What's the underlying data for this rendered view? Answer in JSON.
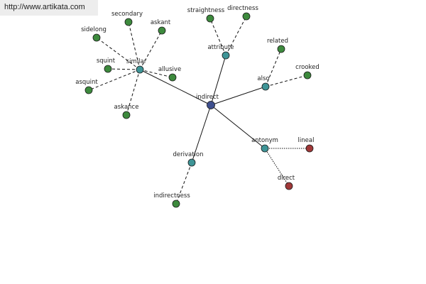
{
  "watermark": "http://www.artikata.com",
  "colors": {
    "center": "#3e4f8e",
    "relation": "#3e9496",
    "term": "#3d8a3d",
    "antonym_term": "#a03838",
    "edge": "#111111"
  },
  "nodes": [
    {
      "id": "indirect",
      "label": "indirect",
      "kind": "center"
    },
    {
      "id": "similar",
      "label": "similar",
      "kind": "relation"
    },
    {
      "id": "attribute",
      "label": "attribute",
      "kind": "relation"
    },
    {
      "id": "also",
      "label": "also",
      "kind": "relation"
    },
    {
      "id": "antonym",
      "label": "antonym",
      "kind": "relation"
    },
    {
      "id": "derivation",
      "label": "derivation",
      "kind": "relation"
    },
    {
      "id": "secondary",
      "label": "secondary",
      "kind": "term"
    },
    {
      "id": "askant",
      "label": "askant",
      "kind": "term"
    },
    {
      "id": "sidelong",
      "label": "sidelong",
      "kind": "term"
    },
    {
      "id": "squint",
      "label": "squint",
      "kind": "term"
    },
    {
      "id": "allusive",
      "label": "allusive",
      "kind": "term"
    },
    {
      "id": "asquint",
      "label": "asquint",
      "kind": "term"
    },
    {
      "id": "askance",
      "label": "askance",
      "kind": "term"
    },
    {
      "id": "straightness",
      "label": "straightness",
      "kind": "term"
    },
    {
      "id": "directness",
      "label": "directness",
      "kind": "term"
    },
    {
      "id": "related",
      "label": "related",
      "kind": "term"
    },
    {
      "id": "crooked",
      "label": "crooked",
      "kind": "term"
    },
    {
      "id": "lineal",
      "label": "lineal",
      "kind": "antonym_term"
    },
    {
      "id": "direct",
      "label": "direct",
      "kind": "antonym_term"
    },
    {
      "id": "indirectness",
      "label": "indirectness",
      "kind": "term"
    }
  ],
  "edges": [
    {
      "from": "indirect",
      "to": "similar",
      "style": "solid"
    },
    {
      "from": "indirect",
      "to": "attribute",
      "style": "solid"
    },
    {
      "from": "indirect",
      "to": "also",
      "style": "solid"
    },
    {
      "from": "indirect",
      "to": "antonym",
      "style": "solid"
    },
    {
      "from": "indirect",
      "to": "derivation",
      "style": "solid"
    },
    {
      "from": "similar",
      "to": "secondary",
      "style": "dashed"
    },
    {
      "from": "similar",
      "to": "askant",
      "style": "dashed"
    },
    {
      "from": "similar",
      "to": "sidelong",
      "style": "dashed"
    },
    {
      "from": "similar",
      "to": "squint",
      "style": "dashed"
    },
    {
      "from": "similar",
      "to": "allusive",
      "style": "dashed"
    },
    {
      "from": "similar",
      "to": "asquint",
      "style": "dashed"
    },
    {
      "from": "similar",
      "to": "askance",
      "style": "dashed"
    },
    {
      "from": "attribute",
      "to": "straightness",
      "style": "dashed"
    },
    {
      "from": "attribute",
      "to": "directness",
      "style": "dashed"
    },
    {
      "from": "also",
      "to": "related",
      "style": "dashed"
    },
    {
      "from": "also",
      "to": "crooked",
      "style": "dashed"
    },
    {
      "from": "antonym",
      "to": "lineal",
      "style": "dotted"
    },
    {
      "from": "antonym",
      "to": "direct",
      "style": "dotted"
    },
    {
      "from": "derivation",
      "to": "indirectness",
      "style": "dashed"
    }
  ]
}
